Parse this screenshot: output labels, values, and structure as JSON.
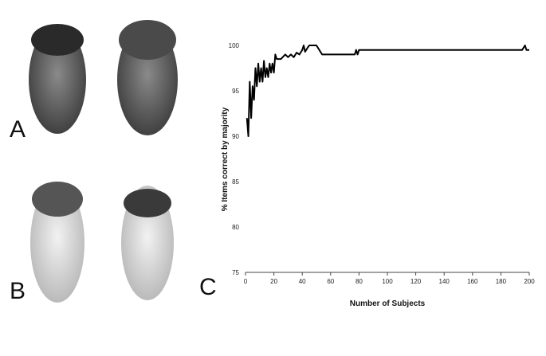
{
  "panel_labels": [
    "A",
    "B",
    "C"
  ],
  "chart_data": {
    "type": "line",
    "x_label": "Number of Subjects",
    "y_label": "% Items correct by majority",
    "x": [
      1,
      2,
      3,
      4,
      5,
      6,
      7,
      8,
      9,
      10,
      11,
      12,
      13,
      14,
      15,
      16,
      17,
      18,
      19,
      20,
      21,
      22,
      25,
      28,
      30,
      32,
      34,
      36,
      38,
      40,
      41,
      42,
      44,
      45,
      50,
      52,
      54,
      77,
      78,
      79,
      80,
      195,
      197,
      198,
      200
    ],
    "series": [
      {
        "color": "#000000",
        "values": [
          92,
          90,
          96,
          92,
          95.5,
          94,
          97.5,
          95.5,
          98,
          96,
          97.5,
          96,
          98.3,
          96.5,
          97.5,
          96.5,
          98,
          97,
          98,
          97,
          99,
          98.5,
          98.5,
          99,
          98.7,
          99,
          98.7,
          99.2,
          99,
          99.5,
          100,
          99.3,
          99.8,
          100,
          100,
          99.5,
          99,
          99,
          99.5,
          99,
          99.5,
          99.5,
          100,
          99.5,
          99.5
        ]
      }
    ],
    "xlim": [
      0,
      200
    ],
    "xticks": [
      0,
      20,
      40,
      60,
      80,
      100,
      120,
      140,
      160,
      180,
      200
    ],
    "ylim": [
      75,
      100
    ],
    "yticks": [
      75,
      80,
      85,
      90,
      95,
      100
    ]
  }
}
